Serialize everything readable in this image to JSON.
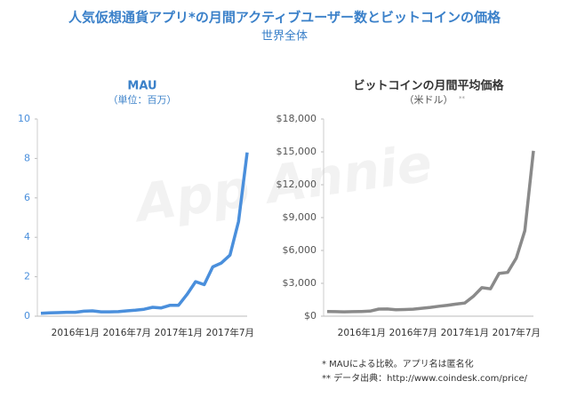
{
  "title": "人気仮想通貨アプリ*の月間アクティブユーザー数とビットコインの価格",
  "subtitle": "世界全体",
  "watermark": "App Annie",
  "footnotes": [
    "* MAUによる比較。アプリ名は匿名化",
    "** データ出典：http://www.coindesk.com/price/"
  ],
  "chart_data": [
    {
      "type": "line",
      "title": "MAU",
      "subtitle": "（単位：百万）",
      "categories": [
        null,
        "2016年1月",
        null,
        null,
        null,
        null,
        null,
        "2016年7月",
        null,
        null,
        null,
        null,
        null,
        "2017年1月",
        null,
        null,
        null,
        null,
        null,
        "2017年7月",
        null,
        null,
        null,
        null,
        null
      ],
      "series": [
        {
          "name": "MAU",
          "color": "#4a8fdc",
          "values": [
            0.15,
            0.17,
            0.18,
            0.2,
            0.2,
            0.25,
            0.27,
            0.22,
            0.22,
            0.23,
            0.27,
            0.3,
            0.35,
            0.45,
            0.42,
            0.55,
            0.55,
            1.1,
            1.75,
            1.6,
            2.5,
            2.7,
            3.1,
            4.8,
            8.3
          ]
        }
      ],
      "ylim": [
        0,
        10
      ],
      "yticks": [
        0,
        2,
        4,
        6,
        8,
        10
      ],
      "tick_color": "#4a8fdc"
    },
    {
      "type": "line",
      "title": "ビットコインの月間平均価格",
      "subtitle": "（米ドル）",
      "subtitle_mark": "**",
      "categories": [
        null,
        "2016年1月",
        null,
        null,
        null,
        null,
        null,
        "2016年7月",
        null,
        null,
        null,
        null,
        null,
        "2017年1月",
        null,
        null,
        null,
        null,
        null,
        "2017年7月",
        null,
        null,
        null,
        null,
        null
      ],
      "series": [
        {
          "name": "ビットコイン",
          "color": "#8a8a8a",
          "values": [
            420,
            410,
            400,
            415,
            430,
            460,
            650,
            660,
            580,
            605,
            640,
            720,
            800,
            910,
            1000,
            1100,
            1200,
            1800,
            2600,
            2500,
            3900,
            4000,
            5300,
            7800,
            15100
          ]
        }
      ],
      "ylim": [
        0,
        18000
      ],
      "yticks": [
        {
          "value": 0,
          "label": "$0"
        },
        {
          "value": 3000,
          "label": "$3,000"
        },
        {
          "value": 6000,
          "label": "$6,000"
        },
        {
          "value": 9000,
          "label": "$9,000"
        },
        {
          "value": 12000,
          "label": "$12,000"
        },
        {
          "value": 15000,
          "label": "$15,000"
        },
        {
          "value": 18000,
          "label": "$18,000"
        }
      ],
      "tick_color": "#555555"
    }
  ]
}
